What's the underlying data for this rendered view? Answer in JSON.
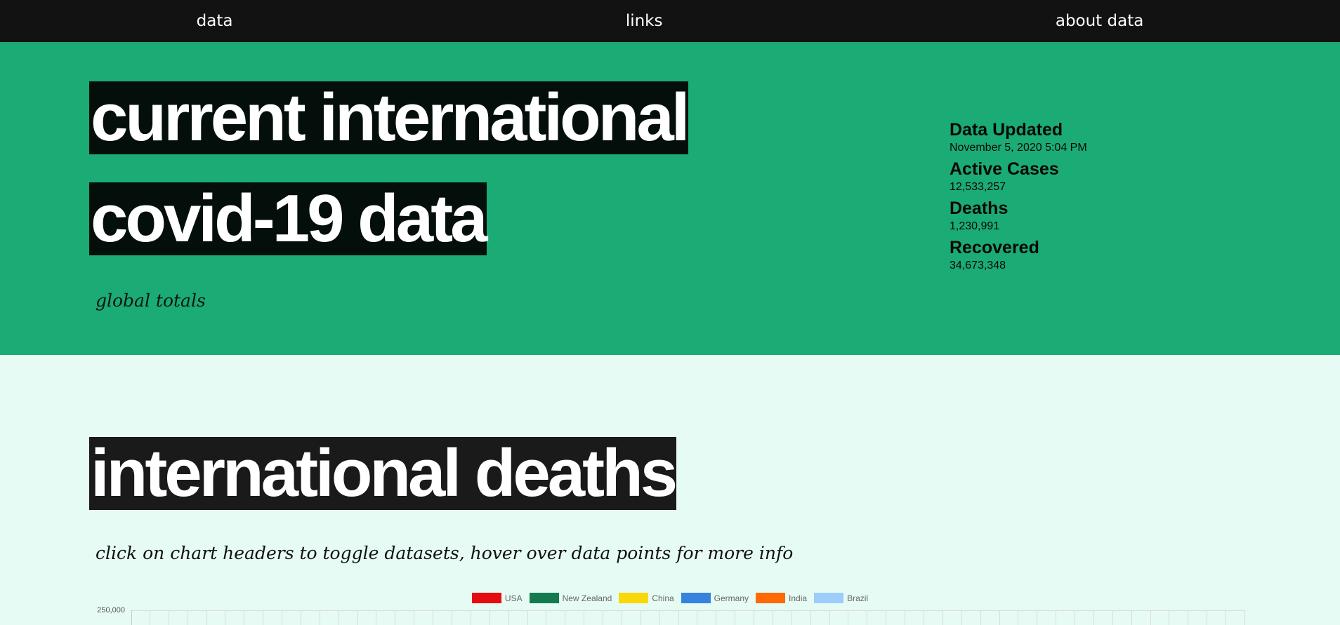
{
  "nav": {
    "data": "data",
    "links": "links",
    "about": "about data"
  },
  "hero": {
    "line1": "current international",
    "line2": "covid-19 data",
    "subtitle": "global totals"
  },
  "stats": {
    "updated_label": "Data Updated",
    "updated_value": "November 5, 2020 5:04 PM",
    "active_label": "Active Cases",
    "active_value": "12,533,257",
    "deaths_label": "Deaths",
    "deaths_value": "1,230,991",
    "recovered_label": "Recovered",
    "recovered_value": "34,673,348"
  },
  "deaths_section": {
    "title": "international deaths",
    "instructions": "click on chart headers to toggle datasets, hover over data points for more info"
  },
  "chart_data": {
    "type": "line",
    "series": [
      {
        "name": "USA",
        "color": "#e60b11"
      },
      {
        "name": "New Zealand",
        "color": "#167a51"
      },
      {
        "name": "China",
        "color": "#f9d80a"
      },
      {
        "name": "Germany",
        "color": "#3682df"
      },
      {
        "name": "India",
        "color": "#ff6a07"
      },
      {
        "name": "Brazil",
        "color": "#9dcdfb"
      }
    ],
    "yticks": [
      "250,000"
    ],
    "grid": true,
    "legend": "top-center"
  }
}
